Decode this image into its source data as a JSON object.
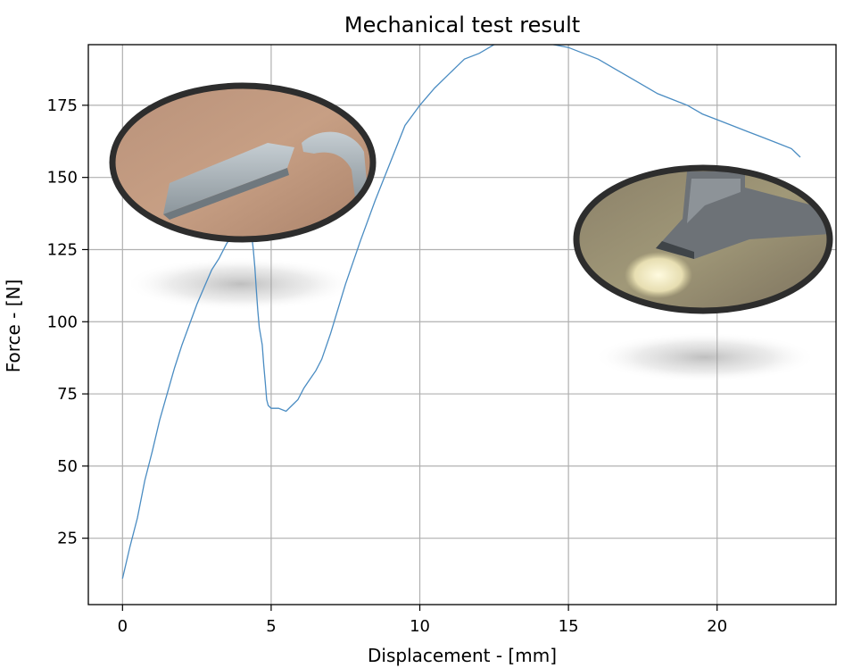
{
  "chart_data": {
    "type": "line",
    "title": "Mechanical test result",
    "xlabel": "Displacement - [mm]",
    "ylabel": "Force - [N]",
    "xlim": [
      -1.15,
      24.0
    ],
    "ylim": [
      2.0,
      196.0
    ],
    "xticks": [
      0,
      5,
      10,
      15,
      20
    ],
    "yticks": [
      25,
      50,
      75,
      100,
      125,
      150,
      175
    ],
    "grid": true,
    "legend": "none",
    "series": [
      {
        "color": "#4a8cc2",
        "x": [
          0.0,
          0.25,
          0.5,
          0.75,
          1.0,
          1.25,
          1.5,
          1.75,
          2.0,
          2.25,
          2.5,
          2.75,
          3.0,
          3.25,
          3.5,
          3.75,
          4.0,
          4.2,
          4.3,
          4.4,
          4.45,
          4.5,
          4.55,
          4.6,
          4.7,
          4.75,
          4.8,
          4.85,
          4.9,
          5.0,
          5.1,
          5.25,
          5.5,
          5.7,
          5.9,
          6.1,
          6.3,
          6.5,
          6.7,
          7.0,
          7.5,
          8.0,
          8.5,
          9.0,
          9.5,
          10.0,
          10.5,
          11.0,
          11.5,
          12.0,
          12.5,
          13.0,
          13.5,
          14.0,
          14.5,
          15.0,
          15.5,
          16.0,
          16.5,
          17.0,
          17.5,
          18.0,
          18.5,
          19.0,
          19.5,
          20.0,
          20.5,
          21.0,
          21.5,
          22.0,
          22.5,
          22.8
        ],
        "y": [
          11,
          22,
          32,
          45,
          55,
          66,
          75,
          84,
          92,
          99,
          106,
          112,
          118,
          122,
          127,
          131,
          134,
          136,
          134,
          125,
          119,
          111,
          104,
          98,
          92,
          85,
          79,
          73,
          71,
          70,
          70,
          70,
          69,
          71,
          73,
          77,
          80,
          83,
          87,
          96,
          113,
          128,
          142,
          155,
          168,
          175,
          181,
          186,
          191,
          193,
          196,
          198,
          198,
          197,
          196,
          195,
          193,
          191,
          188,
          185,
          182,
          179,
          177,
          175,
          172,
          170,
          168,
          166,
          164,
          162,
          160,
          157
        ]
      }
    ]
  }
}
